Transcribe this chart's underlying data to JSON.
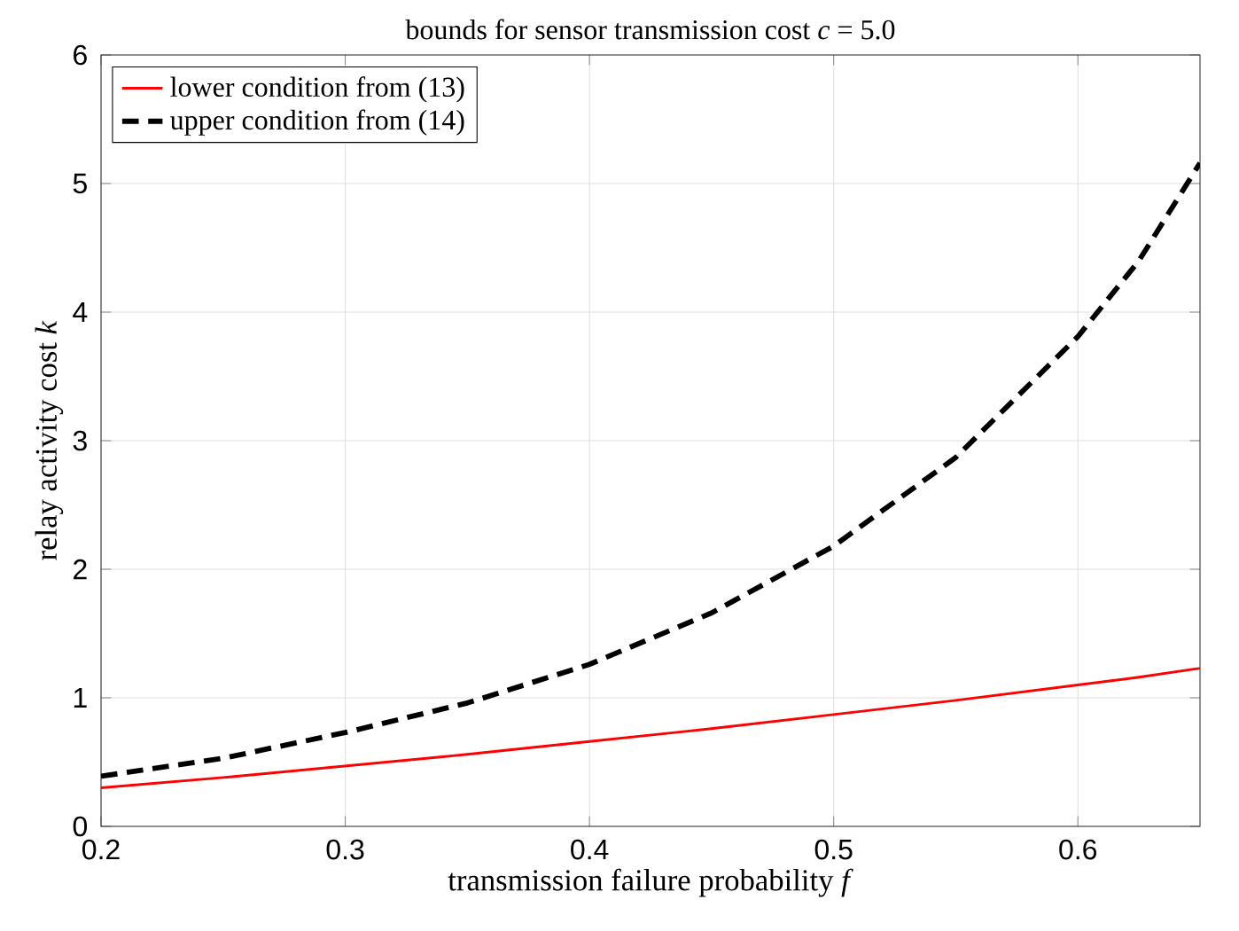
{
  "chart_data": {
    "type": "line",
    "title": "bounds for sensor transmission cost *c* = 5.0",
    "xlabel": "transmission failure probability *f*",
    "ylabel": "relay activity cost *k*",
    "x": [
      0.2,
      0.25,
      0.3,
      0.35,
      0.4,
      0.45,
      0.5,
      0.55,
      0.6,
      0.625,
      0.65
    ],
    "series": [
      {
        "name": "lower condition from (13)",
        "color": "#ff0000",
        "line_style": "solid",
        "values": [
          0.3,
          0.38,
          0.47,
          0.56,
          0.66,
          0.76,
          0.87,
          0.98,
          1.1,
          1.16,
          1.23
        ]
      },
      {
        "name": "upper condition from (14)",
        "color": "#000000",
        "line_style": "dashed",
        "values": [
          0.39,
          0.53,
          0.73,
          0.96,
          1.26,
          1.66,
          2.18,
          2.87,
          3.81,
          4.4,
          5.16
        ]
      }
    ],
    "xlim": [
      0.2,
      0.65
    ],
    "ylim": [
      0,
      6
    ],
    "xticks": [
      0.2,
      0.3,
      0.4,
      0.5,
      0.6
    ],
    "yticks": [
      0,
      1,
      2,
      3,
      4,
      5,
      6
    ],
    "grid": true,
    "legend": "top left",
    "marker": "none"
  }
}
